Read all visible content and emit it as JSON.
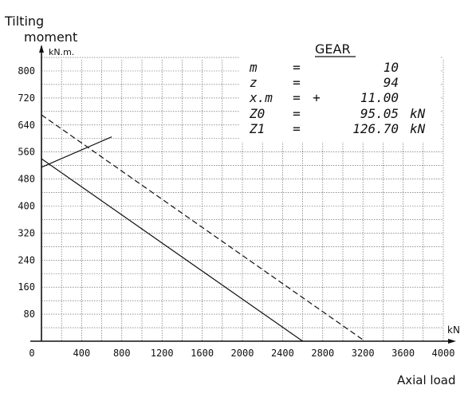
{
  "chart_data": {
    "type": "line",
    "ylabel_lines": [
      "Tilting",
      "moment"
    ],
    "yunit": "kN.m.",
    "xlabel": "Axial load",
    "xunit": "kN",
    "xlim": [
      0,
      4000
    ],
    "ylim": [
      0,
      800
    ],
    "x_ticks": [
      "0",
      "400",
      "800",
      "1200",
      "1600",
      "2000",
      "2400",
      "2800",
      "3200",
      "3600",
      "4000"
    ],
    "y_ticks": [
      "80",
      "160",
      "240",
      "320",
      "400",
      "480",
      "560",
      "640",
      "720",
      "800"
    ],
    "grid": true,
    "series": [
      {
        "style": "solid",
        "points": [
          [
            0,
            540
          ],
          [
            2600,
            0
          ]
        ]
      },
      {
        "style": "dashed",
        "points": [
          [
            0,
            670
          ],
          [
            3220,
            0
          ]
        ]
      },
      {
        "style": "solid",
        "points": [
          [
            0,
            515
          ],
          [
            700,
            605
          ]
        ]
      }
    ]
  },
  "gear": {
    "title": "GEAR",
    "rows": [
      {
        "key": "m",
        "sign": "=",
        "prefix": "",
        "value": "10",
        "unit": ""
      },
      {
        "key": "z",
        "sign": "=",
        "prefix": "",
        "value": "94",
        "unit": ""
      },
      {
        "key": "x.m",
        "sign": "=",
        "prefix": "+",
        "value": "11.00",
        "unit": ""
      },
      {
        "key": "Z0",
        "sign": "=",
        "prefix": "",
        "value": "95.05",
        "unit": "kN"
      },
      {
        "key": "Z1",
        "sign": "=",
        "prefix": "",
        "value": "126.70",
        "unit": "kN"
      }
    ]
  }
}
